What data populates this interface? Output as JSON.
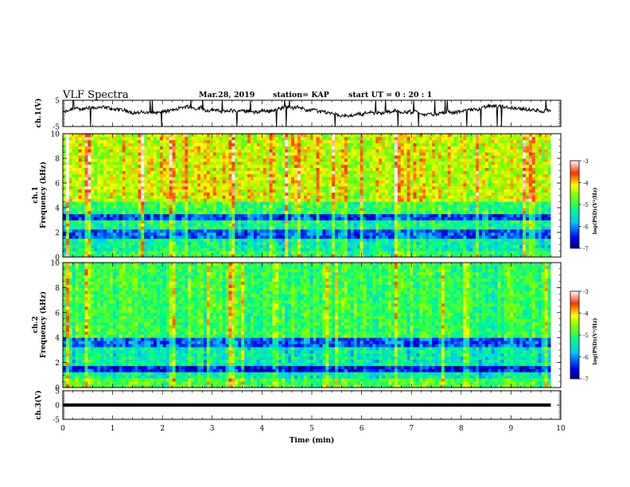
{
  "header": {
    "title": "VLF Spectra",
    "date": "Mar.28, 2019",
    "station": "station= KAP",
    "start": "start  UT =  0 : 20 : 1"
  },
  "chart_data": [
    {
      "type": "line",
      "panel": "ch1-waveform",
      "ylabel": "ch.1(V)",
      "ylim": [
        -5,
        5
      ],
      "yticks": [
        "5",
        "-5"
      ],
      "x_range_min": [
        0,
        9.8
      ],
      "description_values": {
        "baseline_volts": 0.2,
        "spike_amplitude_volts": 5
      }
    },
    {
      "type": "heatmap",
      "panel": "ch1-spectrogram",
      "ylabel_line1": "ch.1",
      "ylabel_line2": "Frequency (kHz)",
      "ylim": [
        0,
        10
      ],
      "yticks": [
        "0",
        "2",
        "4",
        "6",
        "8",
        "10"
      ],
      "colorbar": {
        "label": "log(PSD)(V²/Hz)",
        "range": [
          -7,
          -3
        ],
        "ticks": [
          "-3",
          "-4",
          "-5",
          "-6",
          "-7"
        ]
      },
      "bands_khz": [
        {
          "from": 0.0,
          "to": 0.6,
          "level": -5.0
        },
        {
          "from": 0.6,
          "to": 1.4,
          "level": -5.3
        },
        {
          "from": 1.4,
          "to": 2.2,
          "level": -6.2
        },
        {
          "from": 2.2,
          "to": 2.9,
          "level": -5.2
        },
        {
          "from": 2.9,
          "to": 3.4,
          "level": -6.3
        },
        {
          "from": 3.4,
          "to": 4.6,
          "level": -5.0
        },
        {
          "from": 4.6,
          "to": 10.0,
          "level": -4.3
        }
      ],
      "bright_events_min": [
        0.1,
        0.5,
        1.6,
        2.2,
        3.4,
        4.2,
        6.7,
        9.4
      ]
    },
    {
      "type": "heatmap",
      "panel": "ch2-spectrogram",
      "ylabel_line1": "ch.2",
      "ylabel_line2": "Frequency (kHz)",
      "ylim": [
        0,
        10
      ],
      "yticks": [
        "0",
        "2",
        "4",
        "6",
        "8",
        "10"
      ],
      "colorbar": {
        "label": "log(PSD)(V²/Hz)",
        "range": [
          -7,
          -3
        ],
        "ticks": [
          "-3",
          "-4",
          "-5",
          "-6",
          "-7"
        ]
      },
      "bands_khz": [
        {
          "from": 0.0,
          "to": 0.7,
          "level": -4.9
        },
        {
          "from": 0.7,
          "to": 1.2,
          "level": -5.4
        },
        {
          "from": 1.2,
          "to": 1.7,
          "level": -6.6
        },
        {
          "from": 1.7,
          "to": 3.3,
          "level": -5.4
        },
        {
          "from": 3.3,
          "to": 4.1,
          "level": -6.2
        },
        {
          "from": 4.1,
          "to": 10.0,
          "level": -5.0
        }
      ],
      "bright_events_min": [
        0.1,
        0.5,
        2.2,
        3.4,
        5.3,
        6.7
      ]
    },
    {
      "type": "line",
      "panel": "ch3-waveform",
      "ylabel": "ch.3(V)",
      "ylim": [
        -5,
        5
      ],
      "yticks": [
        "5",
        "0",
        "-5"
      ],
      "value_volts": 0,
      "x_range_min": [
        0,
        9.8
      ]
    }
  ],
  "xaxis": {
    "label": "Time (min)",
    "ticks": [
      "0",
      "1",
      "2",
      "3",
      "4",
      "5",
      "6",
      "7",
      "8",
      "9",
      "10"
    ],
    "xlim": [
      0,
      10
    ]
  },
  "colors": {
    "axis": "#000000",
    "trace": "#000000",
    "background": "#ffffff"
  }
}
